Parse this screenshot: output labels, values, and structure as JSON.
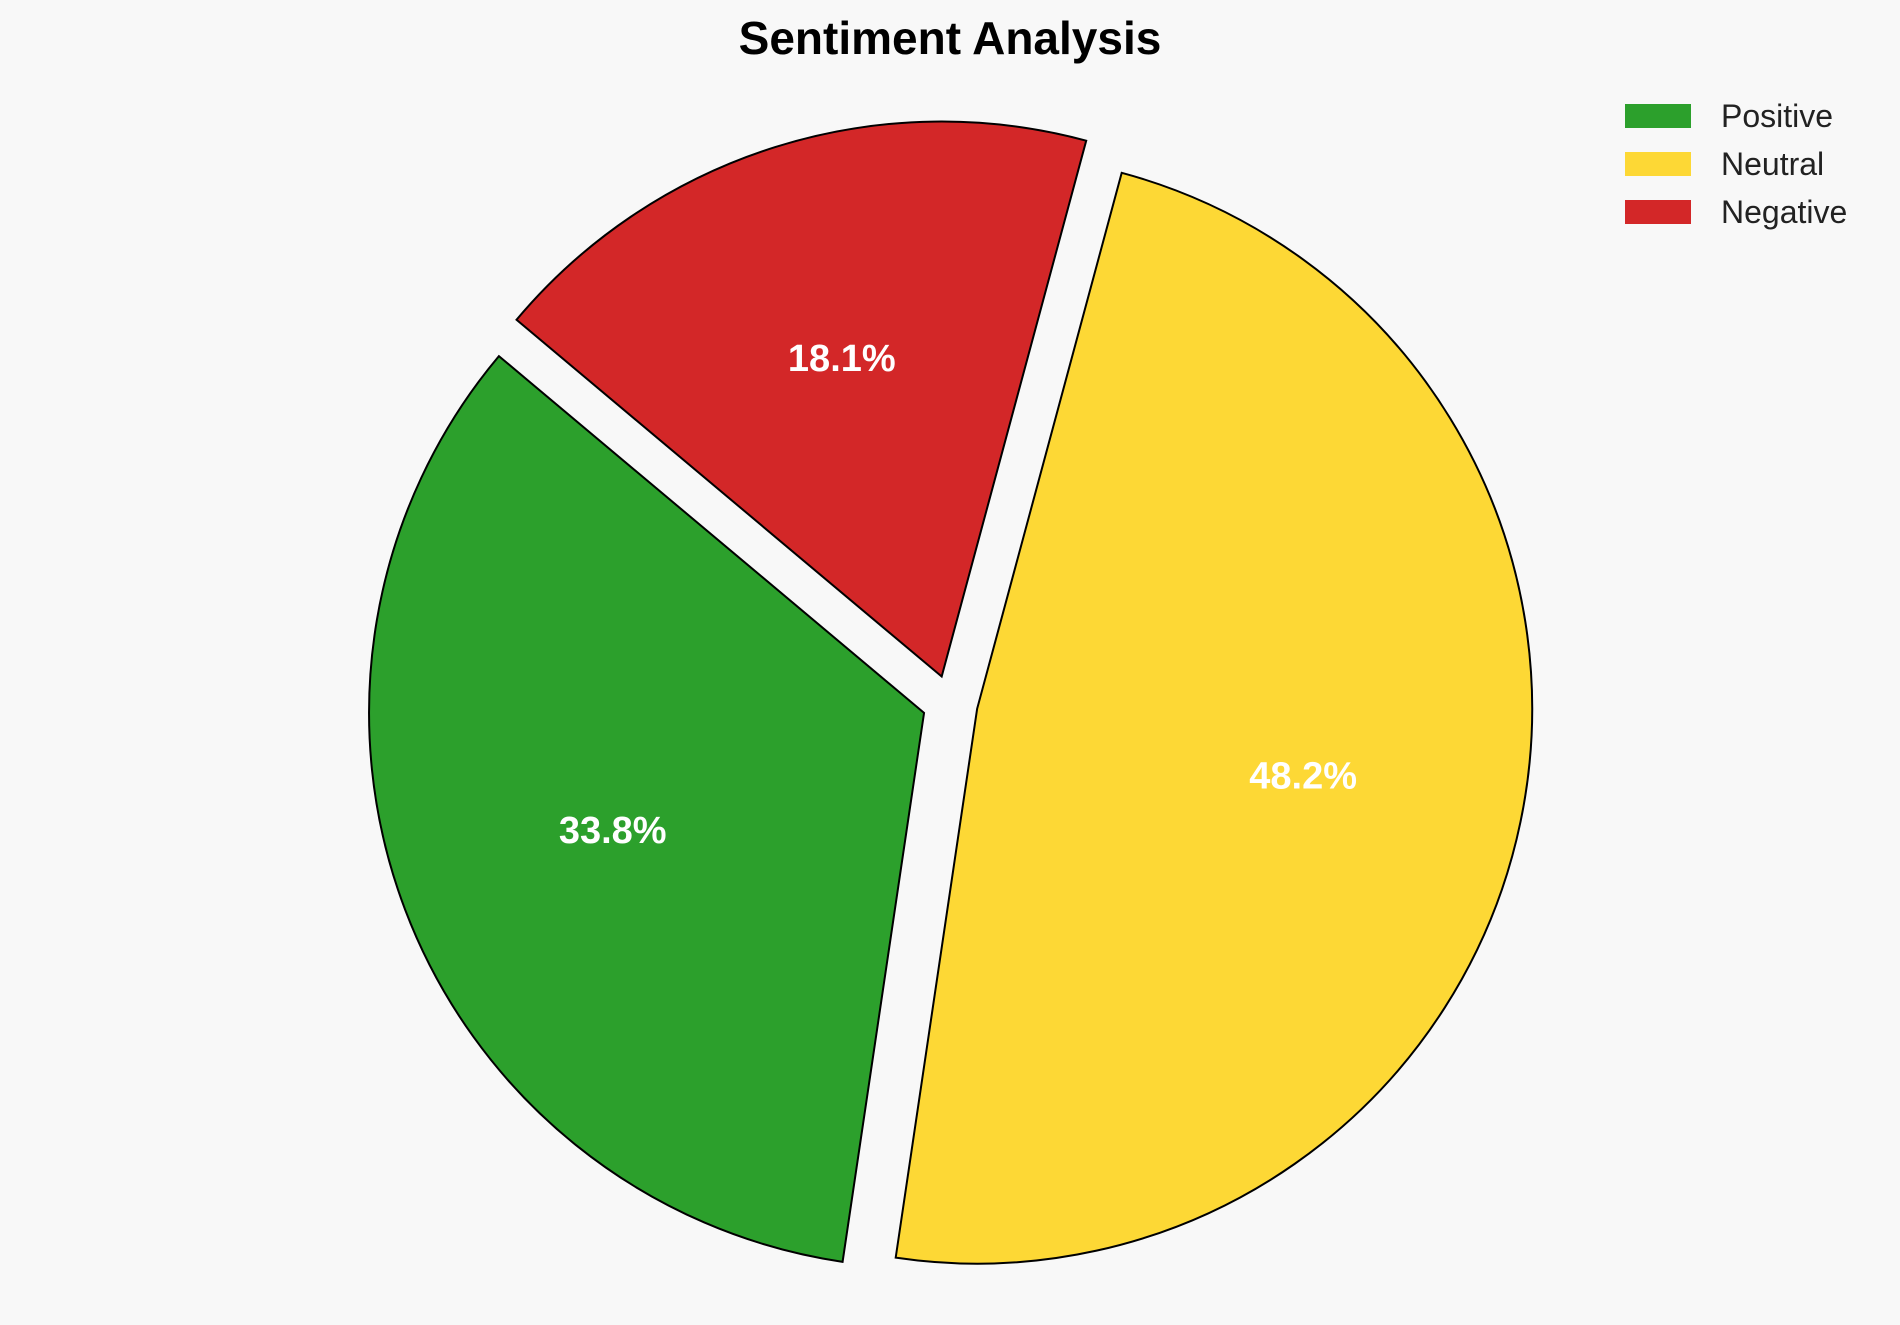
{
  "chart_data": {
    "type": "pie",
    "title": "Sentiment Analysis",
    "slices": [
      {
        "label": "Positive",
        "value": 33.8,
        "display": "33.8%",
        "color": "#2ca02c",
        "exploded": true
      },
      {
        "label": "Neutral",
        "value": 48.2,
        "display": "48.2%",
        "color": "#fdd835",
        "exploded": true
      },
      {
        "label": "Negative",
        "value": 18.1,
        "display": "18.1%",
        "color": "#d32728",
        "exploded": true
      }
    ],
    "legend": {
      "placement": "top-right",
      "entries": [
        "Positive",
        "Neutral",
        "Negative"
      ]
    },
    "edge_color": "#000000"
  }
}
